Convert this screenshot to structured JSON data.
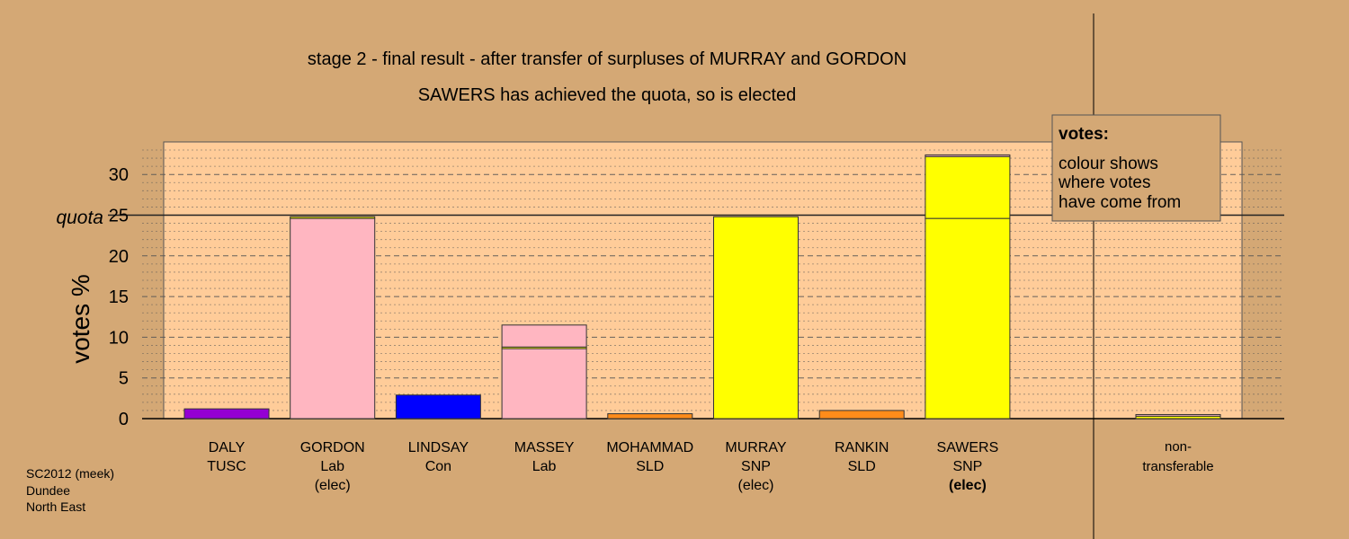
{
  "chart_data": {
    "type": "bar",
    "title": "stage 2 - final result - after transfer of surpluses of MURRAY and GORDON",
    "subtitle": "SAWERS has achieved the quota, so is elected",
    "ylabel": "votes %",
    "ylim": [
      0,
      34
    ],
    "yticks": [
      "0",
      "5",
      "10",
      "15",
      "20",
      "25",
      "30"
    ],
    "quota": 25,
    "quota_label": "quota",
    "grid": true,
    "candidates": [
      {
        "name": "DALY",
        "party": "TUSC",
        "status": "",
        "segments": [
          {
            "value": 1.2,
            "color": "#9400d3"
          }
        ]
      },
      {
        "name": "GORDON",
        "party": "Lab",
        "status": "(elec)",
        "segments": [
          {
            "value": 24.6,
            "color": "#ffb6c1"
          },
          {
            "value": 0.2,
            "color": "#ffff00"
          }
        ]
      },
      {
        "name": "LINDSAY",
        "party": "Con",
        "status": "",
        "segments": [
          {
            "value": 2.9,
            "color": "#0000ff"
          }
        ]
      },
      {
        "name": "MASSEY",
        "party": "Lab",
        "status": "",
        "segments": [
          {
            "value": 8.6,
            "color": "#ffb6c1"
          },
          {
            "value": 0.2,
            "color": "#ffff00"
          },
          {
            "value": 2.7,
            "color": "#ffb6c1"
          }
        ]
      },
      {
        "name": "MOHAMMAD",
        "party": "SLD",
        "status": "",
        "segments": [
          {
            "value": 0.6,
            "color": "#ff8c1a"
          }
        ]
      },
      {
        "name": "MURRAY",
        "party": "SNP",
        "status": "(elec)",
        "segments": [
          {
            "value": 24.8,
            "color": "#ffff00"
          }
        ]
      },
      {
        "name": "RANKIN",
        "party": "SLD",
        "status": "",
        "segments": [
          {
            "value": 1.0,
            "color": "#ff8c1a"
          }
        ]
      },
      {
        "name": "SAWERS",
        "party": "SNP",
        "status": "(elec)",
        "status_bold": true,
        "segments": [
          {
            "value": 24.6,
            "color": "#ffff00"
          },
          {
            "value": 7.6,
            "color": "#ffff00"
          },
          {
            "value": 0.2,
            "color": "#ffb6c1"
          }
        ]
      }
    ],
    "non_transferable": {
      "label_line1": "non-",
      "label_line2": "transferable",
      "segments": [
        {
          "value": 0.3,
          "color": "#ffff00"
        },
        {
          "value": 0.2,
          "color": "#ffb6c1"
        }
      ]
    },
    "legend": {
      "title": "votes:",
      "lines": [
        "colour shows",
        "where votes",
        "have come from"
      ]
    }
  },
  "footer": {
    "election": "SC2012 (meek)",
    "council": "Dundee",
    "ward": "North East"
  },
  "colors": {
    "background": "#d4a875",
    "plot_area": "#ffcc99"
  }
}
